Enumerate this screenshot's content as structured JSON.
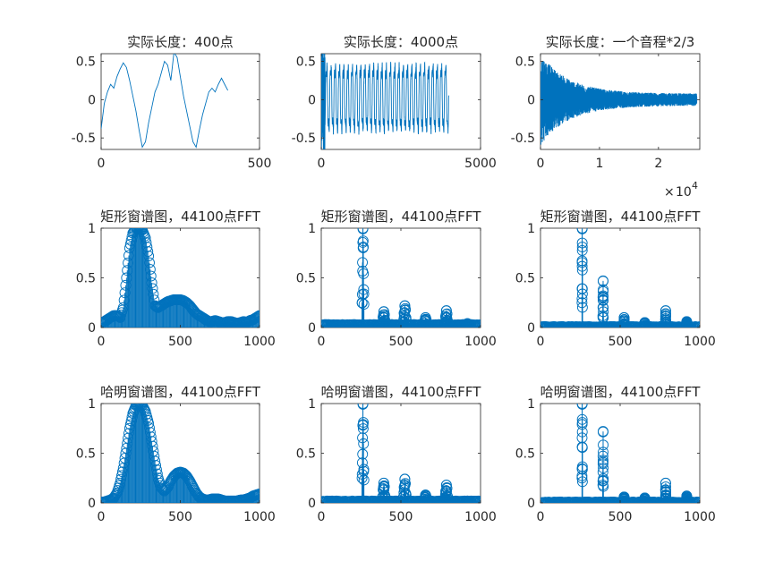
{
  "chart_data": [
    {
      "type": "line",
      "title": "实际长度：400点",
      "xlim": [
        0,
        500
      ],
      "ylim": [
        -0.65,
        0.6
      ],
      "xticks": [
        0,
        500
      ],
      "xtick_labels": [
        "0",
        "500"
      ],
      "yticks": [
        0.5,
        0,
        -0.5
      ],
      "ytick_labels": [
        "0.5",
        "0",
        "-0.5"
      ],
      "series": [
        {
          "x": [
            0,
            10,
            20,
            30,
            40,
            50,
            60,
            70,
            80,
            90,
            100,
            110,
            120,
            130,
            140,
            150,
            160,
            170,
            180,
            190,
            200,
            210,
            220,
            230,
            240,
            250,
            260,
            270,
            280,
            290,
            300,
            310,
            320,
            330,
            340,
            350,
            360,
            370,
            380,
            390,
            400
          ],
          "y": [
            -0.38,
            -0.05,
            0.1,
            0.2,
            0.15,
            0.3,
            0.4,
            0.48,
            0.42,
            0.25,
            0.05,
            -0.15,
            -0.4,
            -0.62,
            -0.55,
            -0.3,
            -0.1,
            0.1,
            0.2,
            0.35,
            0.5,
            0.45,
            0.25,
            0.62,
            0.55,
            0.3,
            0.05,
            -0.15,
            -0.35,
            -0.55,
            -0.62,
            -0.4,
            -0.2,
            -0.05,
            0.1,
            0.15,
            0.1,
            0.2,
            0.28,
            0.2,
            0.12
          ]
        }
      ]
    },
    {
      "type": "line",
      "title": "实际长度：4000点",
      "xlim": [
        0,
        5000
      ],
      "ylim": [
        -0.65,
        0.6
      ],
      "xticks": [
        0,
        5000
      ],
      "xtick_labels": [
        "0",
        "5000"
      ],
      "yticks": [
        0.5,
        0,
        -0.5
      ],
      "ytick_labels": [
        "0.5",
        "0",
        "-0.5"
      ],
      "signal": {
        "kind": "periodic",
        "n": 4000,
        "cycles": 30,
        "y_high": 0.45,
        "y_low": -0.4,
        "spike_high": 0.6,
        "spike_low": -0.65
      }
    },
    {
      "type": "line",
      "title": "实际长度：一个音程*2/3",
      "xlim": [
        0,
        27000
      ],
      "ylim": [
        -0.65,
        0.6
      ],
      "xticks": [
        0,
        10000,
        20000
      ],
      "xtick_labels": [
        "0",
        "1",
        "2"
      ],
      "x_exponent": "10",
      "x_exponent_power": "4",
      "yticks": [
        0.5,
        0,
        -0.5
      ],
      "ytick_labels": [
        "0.5",
        "0",
        "-0.5"
      ],
      "signal": {
        "kind": "decay",
        "n": 26500,
        "amp_start": 0.6,
        "amp_end": 0.08
      }
    },
    {
      "type": "stem",
      "title": "矩形窗谱图，44100点FFT",
      "xlim": [
        0,
        1000
      ],
      "ylim": [
        0,
        1
      ],
      "xticks": [
        0,
        500,
        1000
      ],
      "xtick_labels": [
        "0",
        "500",
        "1000"
      ],
      "yticks": [
        1,
        0.5,
        0
      ],
      "ytick_labels": [
        "1",
        "0.5",
        "0"
      ],
      "x": [
        0,
        20,
        40,
        60,
        80,
        100,
        120,
        140,
        160,
        180,
        200,
        220,
        240,
        260,
        280,
        300,
        320,
        340,
        360,
        380,
        400,
        420,
        440,
        460,
        480,
        500,
        520,
        540,
        560,
        580,
        600,
        620,
        640,
        660,
        680,
        700,
        720,
        740,
        760,
        780,
        800,
        820,
        840,
        860,
        880,
        900,
        920,
        940,
        960,
        980,
        1000
      ],
      "y": [
        0.04,
        0.06,
        0.08,
        0.1,
        0.12,
        0.12,
        0.1,
        0.2,
        0.5,
        0.8,
        0.95,
        1.0,
        1.0,
        0.98,
        0.9,
        0.72,
        0.45,
        0.22,
        0.2,
        0.22,
        0.24,
        0.26,
        0.27,
        0.28,
        0.28,
        0.28,
        0.27,
        0.25,
        0.22,
        0.18,
        0.14,
        0.12,
        0.1,
        0.08,
        0.06,
        0.06,
        0.07,
        0.06,
        0.05,
        0.05,
        0.06,
        0.06,
        0.05,
        0.04,
        0.05,
        0.06,
        0.05,
        0.07,
        0.08,
        0.1,
        0.12
      ]
    },
    {
      "type": "stem",
      "title": "矩形窗谱图，44100点FFT",
      "xlim": [
        0,
        1000
      ],
      "ylim": [
        0,
        1
      ],
      "xticks": [
        0,
        500,
        1000
      ],
      "xtick_labels": [
        "0",
        "500",
        "1000"
      ],
      "yticks": [
        1,
        0.5,
        0
      ],
      "ytick_labels": [
        "1",
        "0.5",
        "0"
      ],
      "peaks": [
        {
          "x": 262,
          "height": 1.0,
          "width": 12
        },
        {
          "x": 393,
          "height": 0.16,
          "width": 20
        },
        {
          "x": 525,
          "height": 0.22,
          "width": 20
        },
        {
          "x": 655,
          "height": 0.1,
          "width": 20
        },
        {
          "x": 786,
          "height": 0.17,
          "width": 20
        },
        {
          "x": 918,
          "height": 0.04,
          "width": 20
        }
      ],
      "baseline": 0.02
    },
    {
      "type": "stem",
      "title": "矩形窗谱图，44100点FFT",
      "xlim": [
        0,
        1000
      ],
      "ylim": [
        0,
        1
      ],
      "xticks": [
        0,
        500,
        1000
      ],
      "xtick_labels": [
        "0",
        "500",
        "1000"
      ],
      "yticks": [
        1,
        0.5,
        0
      ],
      "ytick_labels": [
        "1",
        "0.5",
        "0"
      ],
      "peaks": [
        {
          "x": 262,
          "height": 1.0,
          "width": 3
        },
        {
          "x": 393,
          "height": 0.47,
          "width": 3
        },
        {
          "x": 525,
          "height": 0.1,
          "width": 3
        },
        {
          "x": 655,
          "height": 0.05,
          "width": 3
        },
        {
          "x": 786,
          "height": 0.17,
          "width": 3
        },
        {
          "x": 918,
          "height": 0.06,
          "width": 3
        }
      ],
      "baseline": 0.0
    },
    {
      "type": "stem",
      "title": "哈明窗谱图，44100点FFT",
      "xlim": [
        0,
        1000
      ],
      "ylim": [
        0,
        1
      ],
      "xticks": [
        0,
        500,
        1000
      ],
      "xtick_labels": [
        "0",
        "500",
        "1000"
      ],
      "yticks": [
        1,
        0.5,
        0
      ],
      "ytick_labels": [
        "1",
        "0.5",
        "0"
      ],
      "x": [
        0,
        20,
        40,
        60,
        80,
        100,
        120,
        140,
        160,
        180,
        200,
        220,
        240,
        260,
        280,
        300,
        320,
        340,
        360,
        380,
        400,
        420,
        440,
        460,
        480,
        500,
        520,
        540,
        560,
        580,
        600,
        620,
        640,
        660,
        680,
        700,
        720,
        740,
        760,
        780,
        800,
        820,
        840,
        860,
        880,
        900,
        920,
        940,
        960,
        980,
        1000
      ],
      "y": [
        0.01,
        0.01,
        0.02,
        0.03,
        0.05,
        0.1,
        0.2,
        0.35,
        0.55,
        0.75,
        0.9,
        0.98,
        1.0,
        0.98,
        0.92,
        0.8,
        0.62,
        0.42,
        0.25,
        0.15,
        0.12,
        0.16,
        0.22,
        0.27,
        0.3,
        0.31,
        0.3,
        0.27,
        0.22,
        0.16,
        0.1,
        0.06,
        0.04,
        0.03,
        0.03,
        0.04,
        0.04,
        0.04,
        0.03,
        0.02,
        0.02,
        0.02,
        0.02,
        0.02,
        0.03,
        0.03,
        0.04,
        0.05,
        0.07,
        0.08,
        0.09
      ]
    },
    {
      "type": "stem",
      "title": "哈明窗谱图，44100点FFT",
      "xlim": [
        0,
        1000
      ],
      "ylim": [
        0,
        1
      ],
      "xticks": [
        0,
        500,
        1000
      ],
      "xtick_labels": [
        "0",
        "500",
        "1000"
      ],
      "yticks": [
        1,
        0.5,
        0
      ],
      "ytick_labels": [
        "1",
        "0.5",
        "0"
      ],
      "peaks": [
        {
          "x": 262,
          "height": 1.0,
          "width": 12
        },
        {
          "x": 393,
          "height": 0.2,
          "width": 18
        },
        {
          "x": 525,
          "height": 0.24,
          "width": 18
        },
        {
          "x": 655,
          "height": 0.08,
          "width": 18
        },
        {
          "x": 786,
          "height": 0.18,
          "width": 18
        },
        {
          "x": 918,
          "height": 0.02,
          "width": 18
        }
      ],
      "baseline": 0.01
    },
    {
      "type": "stem",
      "title": "哈明窗谱图，44100点FFT",
      "xlim": [
        0,
        1000
      ],
      "ylim": [
        0,
        1
      ],
      "xticks": [
        0,
        500,
        1000
      ],
      "xtick_labels": [
        "0",
        "500",
        "1000"
      ],
      "yticks": [
        1,
        0.5,
        0
      ],
      "ytick_labels": [
        "1",
        "0.5",
        "0"
      ],
      "peaks": [
        {
          "x": 262,
          "height": 1.0,
          "width": 3
        },
        {
          "x": 393,
          "height": 0.72,
          "width": 3
        },
        {
          "x": 525,
          "height": 0.06,
          "width": 3
        },
        {
          "x": 655,
          "height": 0.05,
          "width": 3
        },
        {
          "x": 786,
          "height": 0.2,
          "width": 3
        },
        {
          "x": 918,
          "height": 0.07,
          "width": 3
        }
      ],
      "baseline": 0.0
    }
  ]
}
